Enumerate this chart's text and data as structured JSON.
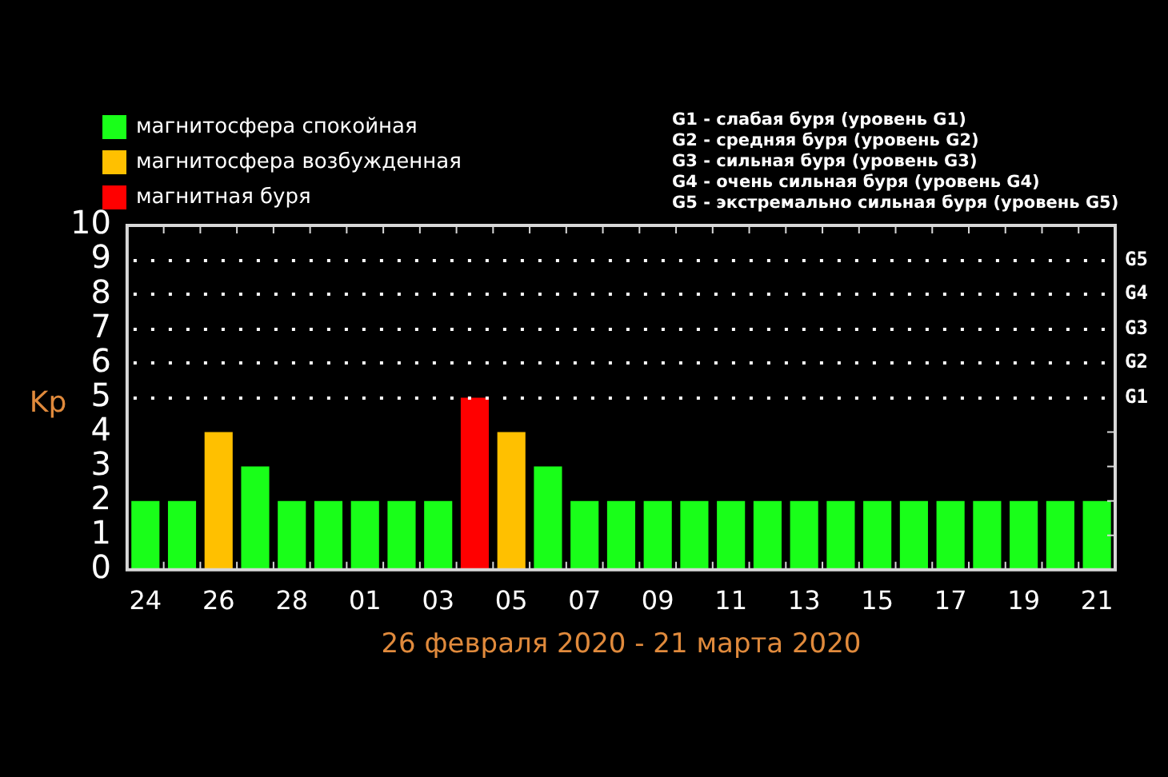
{
  "chart_data": {
    "type": "bar",
    "stacked": true,
    "xlabel": "26 февраля 2020 - 21 марта 2020",
    "ylabel": "Kp",
    "categories": [
      "24",
      null,
      "26",
      null,
      "28",
      null,
      "01",
      null,
      "03",
      null,
      "05",
      null,
      "07",
      null,
      "09",
      null,
      "11",
      null,
      "13",
      null,
      "15",
      null,
      "17",
      null,
      "19",
      null,
      "21"
    ],
    "series": [
      {
        "name": "магнитосфера спокойная",
        "color": "#19ff19",
        "values": [
          2,
          2,
          null,
          3,
          2,
          2,
          2,
          2,
          2,
          null,
          null,
          3,
          2,
          2,
          2,
          2,
          2,
          2,
          2,
          2,
          2,
          2,
          2,
          2,
          2,
          2,
          2
        ]
      },
      {
        "name": "магнитосфера возбужденная",
        "color": "#ffc000",
        "values": [
          null,
          null,
          4,
          null,
          null,
          null,
          null,
          null,
          null,
          null,
          4,
          null,
          null,
          null,
          null,
          null,
          null,
          null,
          null,
          null,
          null,
          null,
          null,
          null,
          null,
          null,
          null
        ]
      },
      {
        "name": "магнитная буря",
        "color": "#ff0000",
        "values": [
          null,
          null,
          null,
          null,
          null,
          null,
          null,
          null,
          null,
          5,
          null,
          null,
          null,
          null,
          null,
          null,
          null,
          null,
          null,
          null,
          null,
          null,
          null,
          null,
          null,
          null,
          null
        ]
      }
    ],
    "ylim": [
      0,
      10
    ],
    "yticks": [
      0,
      1,
      2,
      3,
      4,
      5,
      6,
      7,
      8,
      9,
      10
    ],
    "ref_lines": [
      {
        "axis": "y",
        "value": 5,
        "label": "G1",
        "color": "#ffffff",
        "line_style": "dotted"
      },
      {
        "axis": "y",
        "value": 6,
        "label": "G2",
        "color": "#ffffff",
        "line_style": "dotted"
      },
      {
        "axis": "y",
        "value": 7,
        "label": "G3",
        "color": "#ffffff",
        "line_style": "dotted"
      },
      {
        "axis": "y",
        "value": 8,
        "label": "G4",
        "color": "#ffffff",
        "line_style": "dotted"
      },
      {
        "axis": "y",
        "value": 9,
        "label": "G5",
        "color": "#ffffff",
        "line_style": "dotted"
      }
    ],
    "legend": "top left",
    "annotations": [
      "G1 - слабая буря (уровень G1)",
      "G2 - средняя буря (уровень G2)",
      "G3 - сильная буря (уровень G3)",
      "G4 - очень сильная буря (уровень G4)",
      "G5 - экстремально сильная буря (уровень G5)"
    ]
  }
}
